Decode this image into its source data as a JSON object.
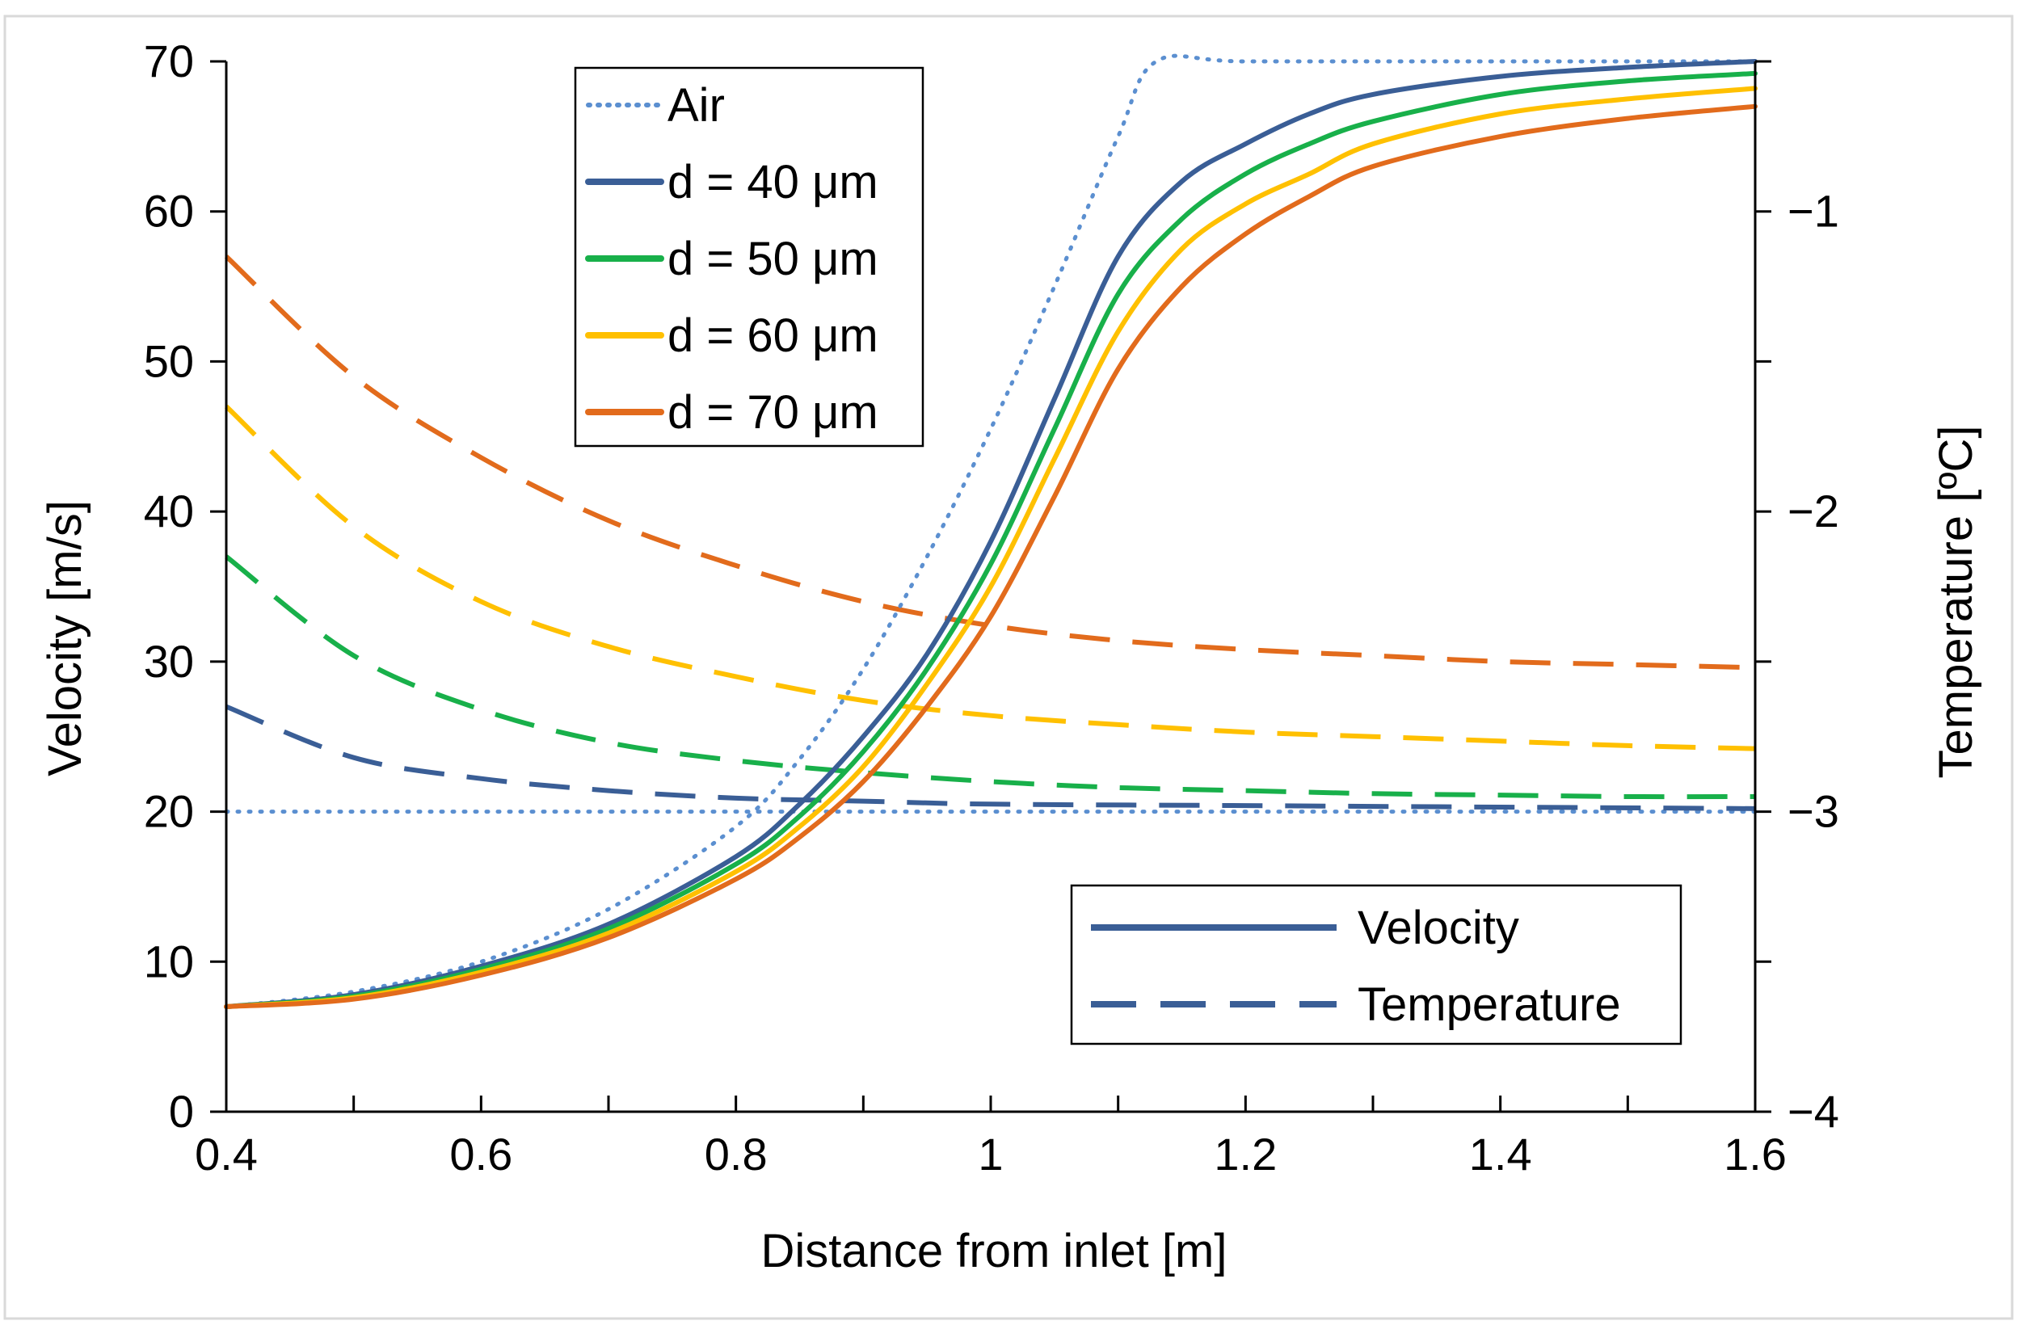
{
  "chart_data": {
    "type": "line",
    "title": "",
    "xlabel": "Distance from inlet [m]",
    "ylabel": "Velocity [m/s]",
    "y2label": "Temperature [ºC]",
    "xlim": [
      0.4,
      1.6
    ],
    "ylim": [
      0,
      70
    ],
    "y2lim": [
      -4,
      -0.5
    ],
    "x_ticks": [
      "0.4",
      "0.6",
      "0.8",
      "1",
      "1.2",
      "1.4",
      "1.6"
    ],
    "y_ticks": [
      "0",
      "10",
      "20",
      "30",
      "40",
      "50",
      "60",
      "70"
    ],
    "y2_ticks": [
      "−4",
      "−3",
      "−2",
      "−1"
    ],
    "grid": false,
    "legend_series": {
      "placement": "top-left",
      "entries": [
        "Air",
        "d = 40 μm",
        "d = 50 μm",
        "d = 60 μm",
        "d = 70 μm"
      ]
    },
    "legend_style": {
      "placement": "bottom-right",
      "entries": [
        "Velocity",
        "Temperature"
      ]
    },
    "colors": {
      "air": "#5b8fd0",
      "d40": "#3a5e96",
      "d50": "#18b04a",
      "d60": "#ffc000",
      "d70": "#e26b1c"
    },
    "velocity_series": [
      {
        "name": "Air",
        "color": "#5b8fd0",
        "x": [
          0.4,
          0.5,
          0.6,
          0.7,
          0.8,
          0.85,
          0.9,
          0.95,
          1.0,
          1.05,
          1.1,
          1.13,
          1.2,
          1.4,
          1.6
        ],
        "y": [
          7,
          8,
          10,
          13.5,
          19,
          23.5,
          29.5,
          37,
          45.5,
          55,
          65,
          70,
          70,
          70,
          70
        ]
      },
      {
        "name": "d = 40 μm",
        "color": "#3a5e96",
        "x": [
          0.4,
          0.5,
          0.6,
          0.7,
          0.8,
          0.85,
          0.9,
          0.95,
          1.0,
          1.05,
          1.1,
          1.15,
          1.2,
          1.25,
          1.3,
          1.4,
          1.5,
          1.6
        ],
        "y": [
          7,
          7.8,
          9.7,
          12.5,
          17,
          20.5,
          25,
          30.5,
          38,
          47.5,
          57,
          62,
          64.5,
          66.5,
          67.8,
          69,
          69.6,
          70
        ]
      },
      {
        "name": "d = 50 μm",
        "color": "#18b04a",
        "x": [
          0.4,
          0.5,
          0.6,
          0.7,
          0.8,
          0.85,
          0.9,
          0.95,
          1.0,
          1.05,
          1.1,
          1.15,
          1.2,
          1.25,
          1.3,
          1.4,
          1.5,
          1.6
        ],
        "y": [
          7,
          7.7,
          9.5,
          12.2,
          16.5,
          19.7,
          24,
          29.5,
          36.5,
          45.5,
          54.5,
          59.5,
          62.5,
          64.5,
          66,
          67.8,
          68.7,
          69.2
        ]
      },
      {
        "name": "d = 60 μm",
        "color": "#ffc000",
        "x": [
          0.4,
          0.5,
          0.6,
          0.7,
          0.8,
          0.85,
          0.9,
          0.95,
          1.0,
          1.05,
          1.1,
          1.15,
          1.2,
          1.25,
          1.3,
          1.4,
          1.5,
          1.6
        ],
        "y": [
          7,
          7.6,
          9.3,
          11.9,
          16,
          19,
          23,
          28.5,
          35,
          43.5,
          52,
          57.5,
          60.5,
          62.5,
          64.5,
          66.5,
          67.5,
          68.2
        ]
      },
      {
        "name": "d = 70 μm",
        "color": "#e26b1c",
        "x": [
          0.4,
          0.5,
          0.6,
          0.7,
          0.8,
          0.85,
          0.9,
          0.95,
          1.0,
          1.05,
          1.1,
          1.15,
          1.2,
          1.25,
          1.3,
          1.4,
          1.5,
          1.6
        ],
        "y": [
          7,
          7.5,
          9.1,
          11.6,
          15.5,
          18.3,
          22,
          27,
          33,
          41,
          49.5,
          55,
          58.5,
          61,
          63,
          65,
          66.2,
          67
        ]
      }
    ],
    "temperature_series": [
      {
        "name": "Air",
        "color": "#5b8fd0",
        "x": [
          0.4,
          1.6
        ],
        "y": [
          -3,
          -3
        ]
      },
      {
        "name": "d = 40 μm",
        "color": "#3a5e96",
        "x": [
          0.4,
          0.5,
          0.6,
          0.7,
          0.8,
          0.9,
          1.0,
          1.2,
          1.4,
          1.6
        ],
        "y": [
          -2.65,
          -2.82,
          -2.89,
          -2.93,
          -2.955,
          -2.965,
          -2.975,
          -2.98,
          -2.985,
          -2.99
        ]
      },
      {
        "name": "d = 50 μm",
        "color": "#18b04a",
        "x": [
          0.4,
          0.5,
          0.6,
          0.7,
          0.8,
          0.9,
          1.0,
          1.1,
          1.2,
          1.3,
          1.4,
          1.5,
          1.6
        ],
        "y": [
          -2.15,
          -2.48,
          -2.66,
          -2.77,
          -2.83,
          -2.87,
          -2.9,
          -2.92,
          -2.93,
          -2.94,
          -2.945,
          -2.95,
          -2.95
        ]
      },
      {
        "name": "d = 60 μm",
        "color": "#ffc000",
        "x": [
          0.4,
          0.5,
          0.6,
          0.7,
          0.8,
          0.9,
          1.0,
          1.1,
          1.2,
          1.3,
          1.4,
          1.5,
          1.6
        ],
        "y": [
          -1.65,
          -2.05,
          -2.3,
          -2.45,
          -2.55,
          -2.63,
          -2.68,
          -2.71,
          -2.735,
          -2.75,
          -2.765,
          -2.78,
          -2.79
        ]
      },
      {
        "name": "d = 70 μm",
        "color": "#e26b1c",
        "x": [
          0.4,
          0.5,
          0.6,
          0.7,
          0.8,
          0.9,
          1.0,
          1.1,
          1.2,
          1.3,
          1.4,
          1.5,
          1.6
        ],
        "y": [
          -1.15,
          -1.55,
          -1.82,
          -2.03,
          -2.18,
          -2.3,
          -2.38,
          -2.43,
          -2.46,
          -2.48,
          -2.5,
          -2.51,
          -2.52
        ]
      }
    ]
  }
}
